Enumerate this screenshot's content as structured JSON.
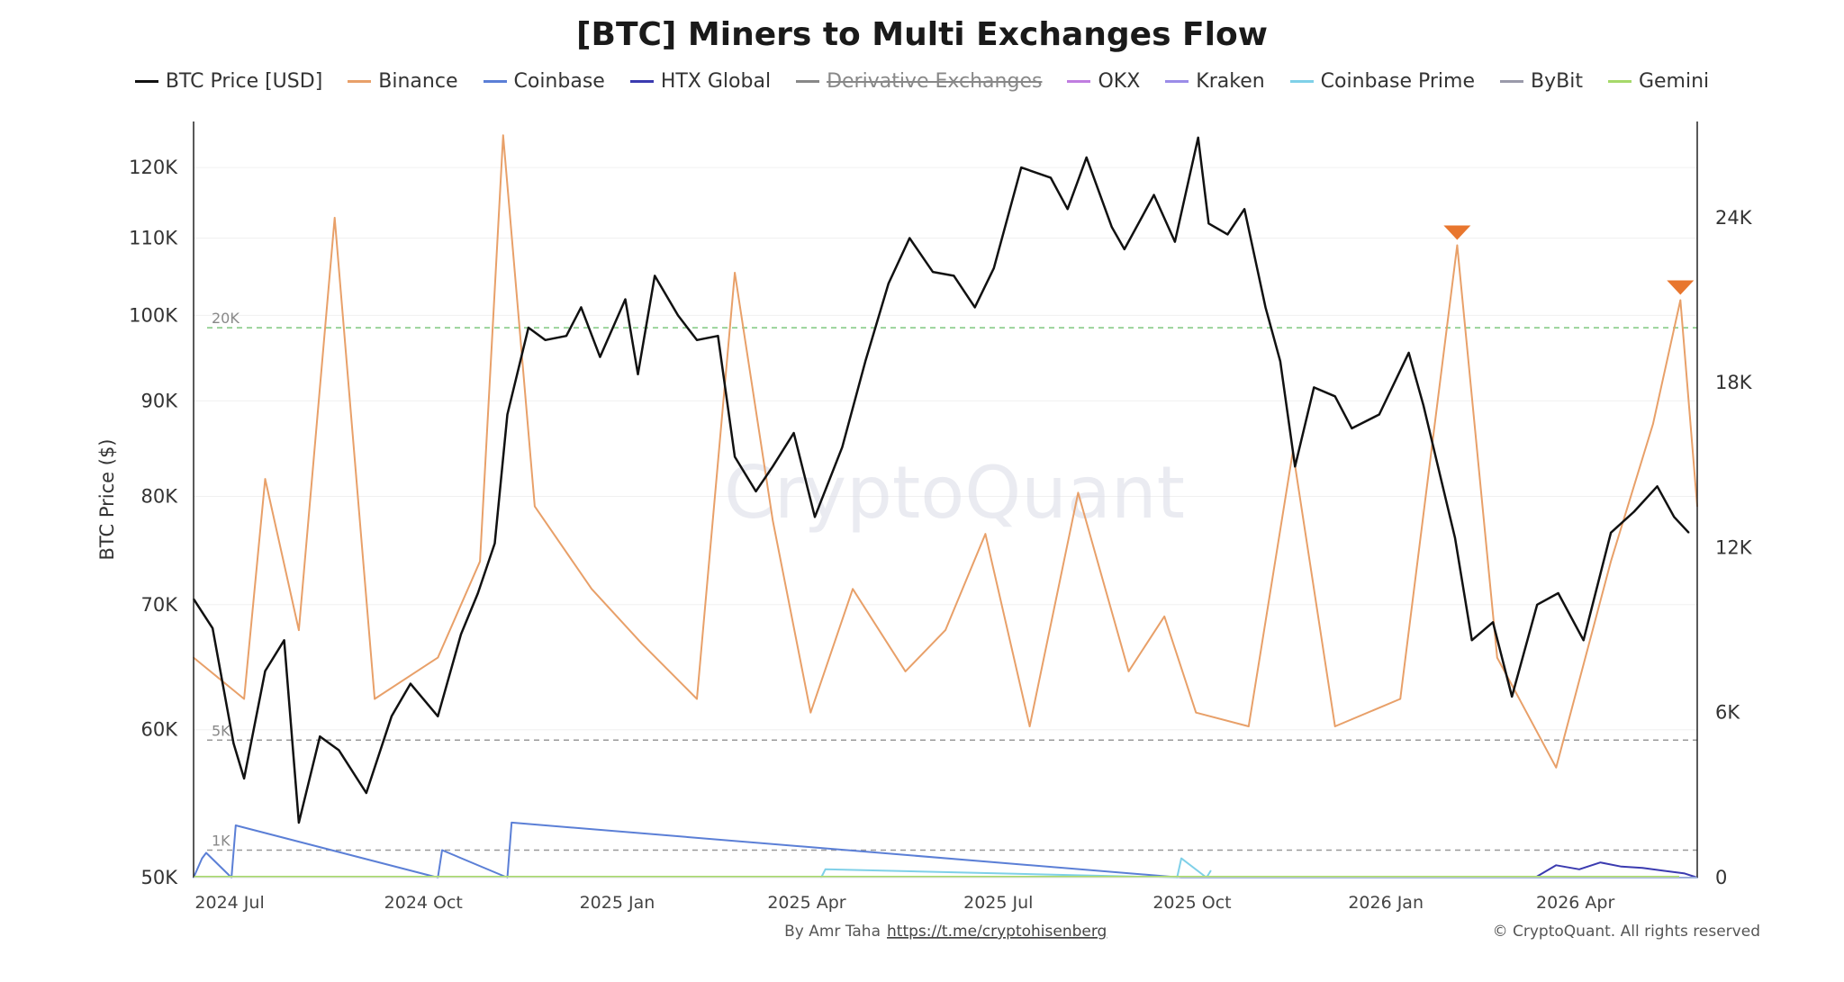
{
  "chart_data": {
    "type": "line",
    "title": "[BTC] Miners to Multi Exchanges Flow",
    "ylabel_left": "BTC Price ($)",
    "y_left_scale": "log",
    "y_left_ticks": [
      "50K",
      "60K",
      "70K",
      "80K",
      "90K",
      "100K",
      "110K",
      "120K"
    ],
    "y_left_tick_values": [
      50000,
      60000,
      70000,
      80000,
      90000,
      100000,
      110000,
      120000
    ],
    "y_left_range": [
      50000,
      127000
    ],
    "y_right_ticks": [
      "0",
      "6K",
      "12K",
      "18K",
      "24K"
    ],
    "y_right_tick_values": [
      0,
      6000,
      12000,
      18000,
      24000
    ],
    "y_right_range": [
      0,
      27500
    ],
    "x_ticks": [
      "2024 Jul",
      "2024 Oct",
      "2025 Jan",
      "2025 Apr",
      "2025 Jul",
      "2025 Oct",
      "2026 Jan",
      "2026 Apr"
    ],
    "x_tick_dates": [
      "2024-07-01",
      "2024-10-01",
      "2025-01-01",
      "2025-04-01",
      "2025-07-01",
      "2025-10-01",
      "2026-01-01",
      "2026-04-01"
    ],
    "x_range": [
      "2024-06-16",
      "2026-05-31"
    ],
    "reference_lines": [
      {
        "label": "20K",
        "value": 20000,
        "color": "#7ec77e"
      },
      {
        "label": "5K",
        "value": 5000,
        "color": "#999999"
      },
      {
        "label": "1K",
        "value": 1000,
        "color": "#999999"
      }
    ],
    "legend": [
      {
        "name": "BTC Price [USD]",
        "color": "#111111",
        "enabled": true
      },
      {
        "name": "Binance",
        "color": "#e8a069",
        "enabled": true
      },
      {
        "name": "Coinbase",
        "color": "#5b7fd6",
        "enabled": true
      },
      {
        "name": "HTX Global",
        "color": "#3b3bb0",
        "enabled": true
      },
      {
        "name": "Derivative Exchanges",
        "color": "#888888",
        "enabled": false
      },
      {
        "name": "OKX",
        "color": "#c07de0",
        "enabled": true
      },
      {
        "name": "Kraken",
        "color": "#9b8ce8",
        "enabled": true
      },
      {
        "name": "Coinbase Prime",
        "color": "#7fd0e8",
        "enabled": true
      },
      {
        "name": "ByBit",
        "color": "#9a9aaa",
        "enabled": true
      },
      {
        "name": "Gemini",
        "color": "#a6d96a",
        "enabled": true
      }
    ],
    "series": [
      {
        "name": "BTC Price [USD]",
        "axis": "left",
        "x": [
          "2024-06-16",
          "2024-06-25",
          "2024-07-05",
          "2024-07-10",
          "2024-07-20",
          "2024-07-29",
          "2024-08-05",
          "2024-08-15",
          "2024-08-24",
          "2024-09-06",
          "2024-09-18",
          "2024-09-27",
          "2024-10-10",
          "2024-10-21",
          "2024-10-29",
          "2024-11-06",
          "2024-11-12",
          "2024-11-22",
          "2024-11-30",
          "2024-12-10",
          "2024-12-17",
          "2024-12-26",
          "2025-01-07",
          "2025-01-13",
          "2025-01-21",
          "2025-02-01",
          "2025-02-10",
          "2025-02-20",
          "2025-02-28",
          "2025-03-10",
          "2025-03-18",
          "2025-03-28",
          "2025-04-07",
          "2025-04-20",
          "2025-05-01",
          "2025-05-12",
          "2025-05-22",
          "2025-06-02",
          "2025-06-12",
          "2025-06-22",
          "2025-07-01",
          "2025-07-14",
          "2025-07-28",
          "2025-08-05",
          "2025-08-14",
          "2025-08-26",
          "2025-09-01",
          "2025-09-15",
          "2025-09-25",
          "2025-10-06",
          "2025-10-11",
          "2025-10-20",
          "2025-10-28",
          "2025-11-07",
          "2025-11-14",
          "2025-11-21",
          "2025-11-30",
          "2025-12-10",
          "2025-12-18",
          "2025-12-31",
          "2026-01-14",
          "2026-01-21",
          "2026-02-05",
          "2026-02-13",
          "2026-02-23",
          "2026-03-04",
          "2026-03-16",
          "2026-03-26",
          "2026-04-07",
          "2026-04-20",
          "2026-05-01",
          "2026-05-12",
          "2026-05-20",
          "2026-05-27"
        ],
        "values": [
          70500,
          68000,
          59000,
          56500,
          64500,
          67000,
          53500,
          59500,
          58500,
          55500,
          61000,
          63500,
          61000,
          67500,
          71000,
          75500,
          88500,
          98500,
          97000,
          97500,
          101000,
          95000,
          102000,
          93000,
          105000,
          100000,
          97000,
          97500,
          84000,
          80500,
          83000,
          86500,
          78000,
          85000,
          94500,
          104000,
          110000,
          105500,
          105000,
          101000,
          106000,
          120000,
          118500,
          114000,
          121500,
          111500,
          108500,
          116000,
          109500,
          124500,
          112000,
          110500,
          114000,
          101000,
          94500,
          83000,
          91500,
          90500,
          87000,
          88500,
          95500,
          89500,
          76000,
          67000,
          68500,
          62500,
          70000,
          71000,
          67000,
          76500,
          78500,
          81000,
          78000,
          76500
        ]
      },
      {
        "name": "Binance",
        "axis": "right",
        "x": [
          "2024-06-16",
          "2024-07-10",
          "2024-07-20",
          "2024-08-05",
          "2024-08-22",
          "2024-09-10",
          "2024-10-10",
          "2024-10-30",
          "2024-11-10",
          "2024-11-25",
          "2024-12-22",
          "2025-01-15",
          "2025-02-10",
          "2025-02-28",
          "2025-03-18",
          "2025-04-05",
          "2025-04-25",
          "2025-05-20",
          "2025-06-08",
          "2025-06-27",
          "2025-07-18",
          "2025-08-10",
          "2025-09-03",
          "2025-09-20",
          "2025-10-05",
          "2025-10-30",
          "2025-11-20",
          "2025-12-10",
          "2026-01-10",
          "2026-02-06",
          "2026-02-25",
          "2026-03-25",
          "2026-04-20",
          "2026-05-10",
          "2026-05-23",
          "2026-05-31"
        ],
        "values": [
          8000,
          6500,
          14500,
          9000,
          24000,
          6500,
          8000,
          11500,
          27000,
          13500,
          10500,
          8500,
          6500,
          22000,
          13000,
          6000,
          10500,
          7500,
          9000,
          12500,
          5500,
          14000,
          7500,
          9500,
          6000,
          5500,
          15500,
          5500,
          6500,
          23000,
          8000,
          4000,
          11500,
          16500,
          21000,
          13500
        ]
      },
      {
        "name": "Coinbase",
        "axis": "right",
        "x": [
          "2024-06-16",
          "2024-06-20",
          "2024-06-22",
          "2024-07-04",
          "2024-07-06",
          "2024-10-10",
          "2024-10-12",
          "2024-11-12",
          "2024-11-14",
          "2025-09-28",
          "2026-04-01",
          "2026-05-31"
        ],
        "values": [
          0,
          700,
          900,
          0,
          1900,
          0,
          1000,
          0,
          2000,
          0,
          0,
          0
        ]
      },
      {
        "name": "HTX Global",
        "axis": "right",
        "x": [
          "2026-03-15",
          "2026-03-25",
          "2026-04-05",
          "2026-04-15",
          "2026-04-25",
          "2026-05-05",
          "2026-05-15",
          "2026-05-25",
          "2026-05-31"
        ],
        "values": [
          0,
          450,
          300,
          550,
          400,
          350,
          250,
          150,
          0
        ]
      },
      {
        "name": "Coinbase Prime",
        "axis": "right",
        "x": [
          "2025-04-10",
          "2025-04-12",
          "2025-09-26",
          "2025-09-28",
          "2025-10-10",
          "2025-10-12"
        ],
        "values": [
          0,
          300,
          0,
          700,
          0,
          250
        ]
      }
    ],
    "annotations": [
      {
        "type": "triangle-marker",
        "series": "Binance",
        "x": "2026-02-06",
        "y": 23000,
        "color": "#e8762e"
      },
      {
        "type": "triangle-marker",
        "series": "Binance",
        "x": "2026-05-23",
        "y": 21000,
        "color": "#e8762e"
      }
    ]
  },
  "watermark": "CryptoQuant",
  "footer": {
    "byline": "By Amr Taha",
    "link": "https://t.me/cryptohisenberg",
    "copyright": "© CryptoQuant. All rights reserved"
  }
}
